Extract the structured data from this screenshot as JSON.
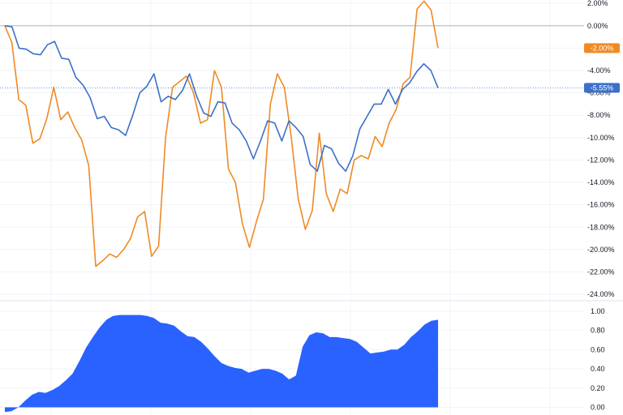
{
  "chart_data": [
    {
      "type": "line",
      "axis_side": "right",
      "grid": true,
      "ylim": [
        -24.5,
        2.3
      ],
      "y_ticks": [
        "2.00%",
        "0.00%",
        "-2.00%",
        "-4.00%",
        "-6.00%",
        "-8.00%",
        "-10.00%",
        "-12.00%",
        "-14.00%",
        "-16.00%",
        "-18.00%",
        "-20.00%",
        "-22.00%",
        "-24.00%"
      ],
      "zero_line": true,
      "series": [
        {
          "color": "#f08a24",
          "last_value_label": "-2.00%",
          "values": [
            0.0,
            -1.5,
            -6.6,
            -7.1,
            -10.5,
            -10.1,
            -8.3,
            -5.5,
            -8.4,
            -7.7,
            -9.1,
            -10.2,
            -12.5,
            -21.5,
            -21.0,
            -20.4,
            -20.7,
            -20.0,
            -19.0,
            -17.1,
            -16.6,
            -20.6,
            -19.7,
            -10.0,
            -5.5,
            -5.0,
            -4.5,
            -6.0,
            -8.7,
            -8.4,
            -4.0,
            -5.5,
            -12.8,
            -14.0,
            -17.7,
            -19.8,
            -17.5,
            -15.5,
            -7.0,
            -4.3,
            -5.5,
            -10.0,
            -15.5,
            -18.2,
            -16.5,
            -9.6,
            -15.0,
            -16.6,
            -14.6,
            -15.0,
            -12.0,
            -11.6,
            -11.9,
            -9.9,
            -10.8,
            -8.7,
            -7.5,
            -5.2,
            -4.6,
            1.5,
            2.2,
            1.4,
            -2.0
          ]
        },
        {
          "color": "#3b70c9",
          "last_value_label": "-5.55%",
          "values": [
            0.0,
            -0.1,
            -2.0,
            -2.1,
            -2.5,
            -2.6,
            -1.7,
            -1.4,
            -2.9,
            -3.0,
            -4.6,
            -5.3,
            -6.4,
            -8.3,
            -8.1,
            -9.1,
            -9.3,
            -9.8,
            -8.0,
            -6.0,
            -5.4,
            -4.3,
            -6.8,
            -6.3,
            -6.6,
            -5.8,
            -4.3,
            -6.3,
            -7.8,
            -8.1,
            -6.8,
            -6.9,
            -8.7,
            -9.3,
            -10.3,
            -11.9,
            -10.3,
            -8.5,
            -8.7,
            -10.3,
            -8.5,
            -9.1,
            -9.9,
            -12.4,
            -13.0,
            -10.7,
            -11.0,
            -12.3,
            -13.0,
            -11.6,
            -9.2,
            -8.1,
            -7.0,
            -7.0,
            -5.7,
            -7.0,
            -5.7,
            -5.1,
            -4.1,
            -3.4,
            -4.0,
            -5.55
          ]
        }
      ]
    },
    {
      "type": "area",
      "axis_side": "right",
      "grid": true,
      "ylim": [
        -0.08,
        1.1
      ],
      "y_ticks": [
        "1.00",
        "0.80",
        "0.60",
        "0.40",
        "0.20",
        "0.00"
      ],
      "series": [
        {
          "color": "#2962ff",
          "values": [
            -0.05,
            -0.04,
            0.0,
            0.07,
            0.13,
            0.16,
            0.15,
            0.18,
            0.22,
            0.28,
            0.35,
            0.48,
            0.62,
            0.73,
            0.83,
            0.91,
            0.95,
            0.96,
            0.96,
            0.96,
            0.96,
            0.95,
            0.93,
            0.88,
            0.87,
            0.85,
            0.79,
            0.74,
            0.73,
            0.68,
            0.61,
            0.53,
            0.46,
            0.43,
            0.41,
            0.4,
            0.36,
            0.38,
            0.4,
            0.4,
            0.38,
            0.35,
            0.29,
            0.33,
            0.63,
            0.75,
            0.78,
            0.77,
            0.73,
            0.73,
            0.72,
            0.71,
            0.68,
            0.62,
            0.56,
            0.57,
            0.58,
            0.6,
            0.6,
            0.65,
            0.73,
            0.79,
            0.86,
            0.9,
            0.91
          ]
        }
      ]
    }
  ]
}
